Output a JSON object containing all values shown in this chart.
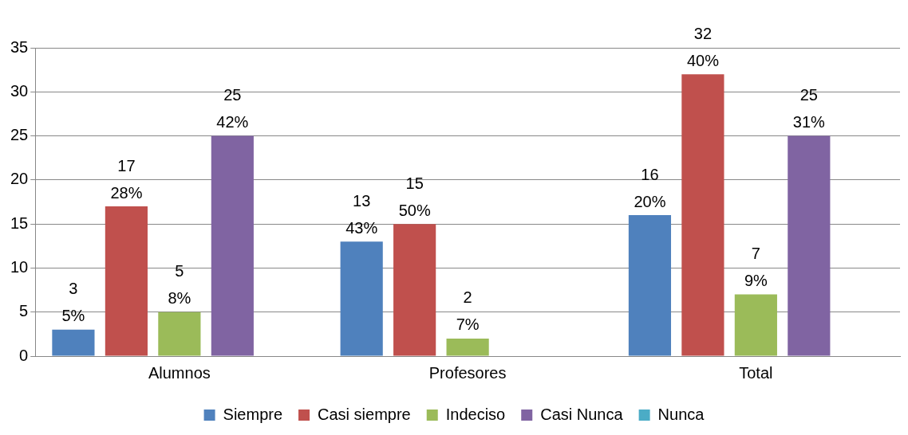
{
  "chart_data": {
    "type": "bar",
    "categories": [
      "Alumnos",
      "Profesores",
      "Total"
    ],
    "series": [
      {
        "name": "Siempre",
        "color": "#4f81bd",
        "values": [
          3,
          13,
          16
        ],
        "value_labels": [
          "3\n5%",
          "13\n43%",
          "16\n20%"
        ]
      },
      {
        "name": "Casi siempre",
        "color": "#c0504d",
        "values": [
          17,
          15,
          32
        ],
        "value_labels": [
          "17\n28%",
          "15\n50%",
          "32\n40%"
        ]
      },
      {
        "name": "Indeciso",
        "color": "#9bbb59",
        "values": [
          5,
          2,
          7
        ],
        "value_labels": [
          "5\n8%",
          "2\n7%",
          "7\n9%"
        ]
      },
      {
        "name": "Casi Nunca",
        "color": "#8064a2",
        "values": [
          25,
          0,
          25
        ],
        "value_labels": [
          "25\n42%",
          null,
          "25\n31%"
        ]
      },
      {
        "name": "Nunca",
        "color": "#4bacc6",
        "values": [
          0,
          0,
          0
        ],
        "value_labels": [
          null,
          null,
          null
        ]
      }
    ],
    "ylim": [
      0,
      35
    ],
    "yticks": [
      0,
      5,
      10,
      15,
      20,
      25,
      30,
      35
    ],
    "grid": "y",
    "legend": "bottom"
  }
}
